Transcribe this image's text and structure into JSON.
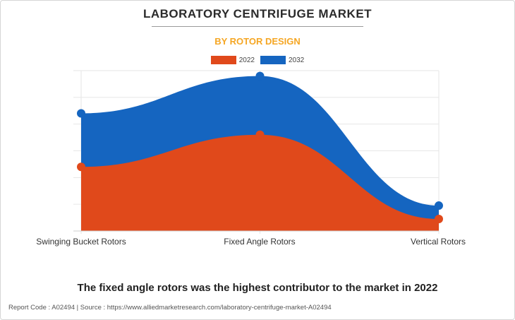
{
  "header": {
    "title": "LABORATORY CENTRIFUGE MARKET",
    "subtitle": "BY ROTOR DESIGN"
  },
  "chart_data": {
    "type": "area",
    "categories": [
      "Swinging Bucket Rotors",
      "Fixed Angle Rotors",
      "Vertical Rotors"
    ],
    "series": [
      {
        "name": "2022",
        "color": "#e0491b",
        "values": [
          2.4,
          3.6,
          0.45
        ]
      },
      {
        "name": "2032",
        "color": "#1565c0",
        "values": [
          4.4,
          5.8,
          0.95
        ]
      }
    ],
    "ylim": [
      0,
      6
    ],
    "grid": true,
    "legend_position": "top-center",
    "xlabel": "",
    "ylabel": ""
  },
  "caption": "The fixed angle rotors was the highest contributor to the market in 2022",
  "footer": "Report Code : A02494  |  Source : https://www.alliedmarketresearch.com/laboratory-centrifuge-market-A02494"
}
